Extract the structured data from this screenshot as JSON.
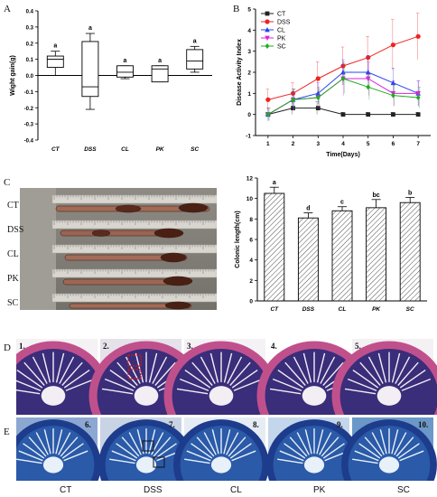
{
  "panels": {
    "a": "A",
    "b": "B",
    "c": "C",
    "d": "D",
    "e": "E"
  },
  "chart_data": [
    {
      "panel": "A",
      "type": "box",
      "ylabel": "Wight gain(g)",
      "ylim": [
        -0.4,
        0.4
      ],
      "yticks": [
        "0.4",
        "0.3",
        "0.2",
        "0.1",
        "0.0",
        "-0.1",
        "-0.2",
        "-0.3",
        "-0.4"
      ],
      "categories": [
        "CT",
        "DSS",
        "CL",
        "PK",
        "SC"
      ],
      "boxes": [
        {
          "min": 0.0,
          "q1": 0.05,
          "median": 0.1,
          "q3": 0.12,
          "max": 0.15,
          "letter": "a"
        },
        {
          "min": -0.21,
          "q1": -0.13,
          "median": -0.07,
          "q3": 0.21,
          "max": 0.26,
          "letter": "a"
        },
        {
          "min": -0.02,
          "q1": -0.01,
          "median": 0.02,
          "q3": 0.06,
          "max": 0.06,
          "letter": "a"
        },
        {
          "min": -0.04,
          "q1": -0.04,
          "median": 0.04,
          "q3": 0.06,
          "max": 0.06,
          "letter": "a"
        },
        {
          "min": 0.02,
          "q1": 0.04,
          "median": 0.09,
          "q3": 0.16,
          "max": 0.18,
          "letter": "a"
        }
      ]
    },
    {
      "panel": "B",
      "type": "line",
      "xlabel": "Time(Days)",
      "ylabel": "Disease Activity Index",
      "ylim": [
        -1,
        5
      ],
      "yticks": [
        "5",
        "4",
        "3",
        "2",
        "1",
        "0",
        "-1"
      ],
      "x": [
        1,
        2,
        3,
        4,
        5,
        6,
        7
      ],
      "series": [
        {
          "name": "CT",
          "color": "#222222",
          "marker": "square",
          "values": [
            0.0,
            0.3,
            0.3,
            0.0,
            0.0,
            0.0,
            0.0
          ],
          "err": [
            0.1,
            0.3,
            0.3,
            0.1,
            0.1,
            0.1,
            0.1
          ]
        },
        {
          "name": "DSS",
          "color": "#ee2222",
          "marker": "circle",
          "values": [
            0.7,
            1.0,
            1.7,
            2.3,
            2.7,
            3.3,
            3.7
          ],
          "err": [
            0.5,
            0.5,
            0.8,
            0.9,
            1.0,
            1.2,
            1.1
          ]
        },
        {
          "name": "CL",
          "color": "#2244ee",
          "marker": "triangle-up",
          "values": [
            0.0,
            0.7,
            1.0,
            2.0,
            2.0,
            1.5,
            1.0
          ],
          "err": [
            0.3,
            0.5,
            0.5,
            0.6,
            0.8,
            0.7,
            0.6
          ]
        },
        {
          "name": "PK",
          "color": "#dd22dd",
          "marker": "triangle-down",
          "values": [
            0.0,
            0.7,
            0.8,
            1.7,
            1.7,
            1.0,
            1.0
          ],
          "err": [
            0.3,
            0.5,
            0.5,
            0.8,
            0.8,
            0.6,
            0.6
          ]
        },
        {
          "name": "SC",
          "color": "#22aa22",
          "marker": "diamond",
          "values": [
            0.0,
            0.7,
            0.8,
            1.7,
            1.3,
            0.9,
            0.8
          ],
          "err": [
            0.3,
            0.5,
            0.4,
            0.7,
            0.6,
            0.5,
            0.5
          ]
        }
      ]
    },
    {
      "panel": "C",
      "type": "bar",
      "ylabel": "Colonic length(cm)",
      "ylim": [
        0,
        12
      ],
      "yticks": [
        "12",
        "10",
        "8",
        "6",
        "4",
        "2",
        "0"
      ],
      "categories": [
        "CT",
        "DSS",
        "CL",
        "PK",
        "SC"
      ],
      "values": [
        10.5,
        8.1,
        8.8,
        9.1,
        9.6
      ],
      "err": [
        0.6,
        0.5,
        0.4,
        0.8,
        0.5
      ],
      "letters": [
        "a",
        "d",
        "c",
        "bc",
        "b"
      ]
    }
  ],
  "colon_photo": {
    "labels": [
      "CT",
      "DSS",
      "CL",
      "PK",
      "SC"
    ]
  },
  "histology": {
    "row_d_numbers": [
      "1.",
      "2.",
      "3.",
      "4.",
      "5."
    ],
    "row_e_numbers": [
      "6.",
      "7.",
      "8.",
      "9.",
      "10."
    ],
    "group_labels": [
      "CT",
      "DSS",
      "CL",
      "PK",
      "SC"
    ]
  }
}
